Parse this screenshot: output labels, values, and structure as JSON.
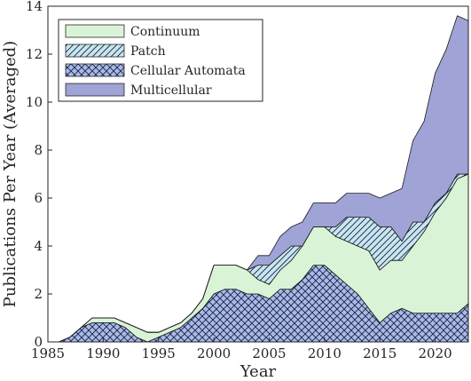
{
  "chart_data": {
    "type": "area",
    "stacked": true,
    "xlabel": "Year",
    "ylabel": "Publications Per Year (Averaged)",
    "xlim": [
      1985,
      2023
    ],
    "ylim": [
      0,
      14
    ],
    "xticks": [
      1985,
      1990,
      1995,
      2000,
      2005,
      2010,
      2015,
      2020
    ],
    "yticks": [
      0,
      2,
      4,
      6,
      8,
      10,
      12,
      14
    ],
    "grid": false,
    "legend_position": "top-left",
    "x": [
      1985,
      1986,
      1987,
      1988,
      1989,
      1990,
      1991,
      1992,
      1993,
      1994,
      1995,
      1996,
      1997,
      1998,
      1999,
      2000,
      2001,
      2002,
      2003,
      2004,
      2005,
      2006,
      2007,
      2008,
      2009,
      2010,
      2011,
      2012,
      2013,
      2014,
      2015,
      2016,
      2017,
      2018,
      2019,
      2020,
      2021,
      2022,
      2023
    ],
    "series": [
      {
        "name": "Cellular Automata",
        "color": "#a9b9e8",
        "pattern": "crosshatch",
        "values": [
          0,
          0,
          0.2,
          0.6,
          0.8,
          0.8,
          0.8,
          0.6,
          0.2,
          0,
          0.2,
          0.4,
          0.6,
          1.0,
          1.4,
          2.0,
          2.2,
          2.2,
          2.0,
          2.0,
          1.8,
          2.2,
          2.2,
          2.6,
          3.2,
          3.2,
          2.8,
          2.4,
          2.0,
          1.4,
          0.8,
          1.2,
          1.4,
          1.2,
          1.2,
          1.2,
          1.2,
          1.2,
          1.6
        ]
      },
      {
        "name": "Continuum",
        "color": "#d9f3d7",
        "pattern": "solid",
        "values": [
          0,
          0,
          0,
          0,
          0.2,
          0.2,
          0.2,
          0.2,
          0.4,
          0.4,
          0.2,
          0.2,
          0.2,
          0.2,
          0.4,
          1.2,
          1.0,
          1.0,
          1.0,
          0.6,
          0.6,
          0.8,
          1.2,
          1.4,
          1.6,
          1.6,
          1.6,
          1.8,
          2.0,
          2.4,
          2.2,
          2.2,
          2.0,
          2.8,
          3.4,
          4.2,
          4.8,
          5.6,
          5.4
        ]
      },
      {
        "name": "Patch",
        "color": "#c8e6f0",
        "pattern": "diagonal",
        "values": [
          0,
          0,
          0,
          0,
          0,
          0,
          0,
          0,
          0,
          0,
          0,
          0,
          0,
          0,
          0,
          0,
          0,
          0,
          0,
          0.6,
          0.8,
          0.6,
          0.6,
          0,
          0,
          0,
          0.4,
          1.0,
          1.2,
          1.4,
          1.8,
          1.4,
          0.8,
          1.0,
          0.4,
          0.4,
          0.2,
          0.2,
          0
        ]
      },
      {
        "name": "Multicellular",
        "color": "#9fa3d6",
        "pattern": "solid",
        "values": [
          0,
          0,
          0,
          0,
          0,
          0,
          0,
          0,
          0,
          0,
          0,
          0,
          0,
          0,
          0,
          0,
          0,
          0,
          0,
          0.4,
          0.4,
          0.8,
          0.8,
          1.0,
          1.0,
          1.0,
          1.0,
          1.0,
          1.0,
          1.0,
          1.2,
          1.4,
          2.2,
          3.4,
          4.2,
          5.4,
          6.0,
          6.6,
          6.4
        ]
      }
    ]
  }
}
